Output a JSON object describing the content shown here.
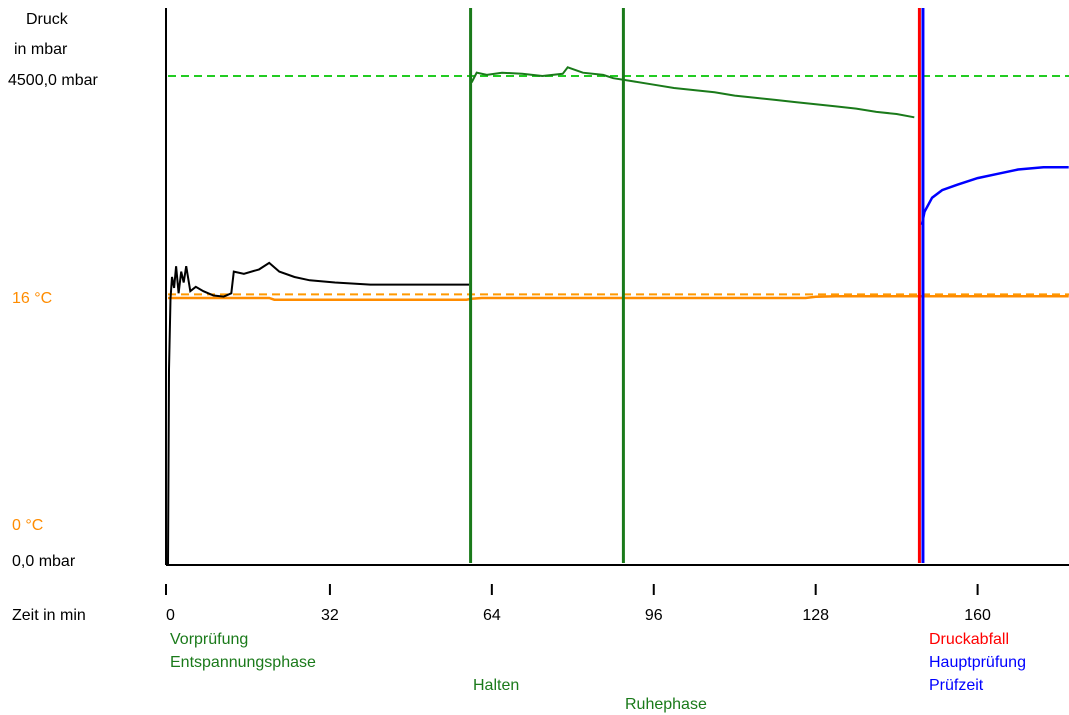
{
  "chart_data": {
    "type": "line",
    "y_axis_labels": {
      "title_line1": "Druck",
      "title_line2": "in mbar",
      "pressure_top": "4500,0 mbar",
      "pressure_bottom": "0,0 mbar",
      "temp_top": "16 °C",
      "temp_bottom": "0 °C"
    },
    "xlabel": "Zeit in min",
    "x_ticks": [
      0,
      32,
      64,
      96,
      128,
      160
    ],
    "xlim": [
      0,
      178
    ],
    "pressure_range_mbar": [
      0,
      4500
    ],
    "temperature_range_c": [
      0,
      16
    ],
    "reference_lines": {
      "pressure_setpoint_mbar": 4500,
      "temperature_setpoint_c": 16.1
    },
    "series": [
      {
        "color": "#000000",
        "unit": "mbar",
        "points": [
          [
            0,
            0
          ],
          [
            0.2,
            1800
          ],
          [
            0.5,
            2450
          ],
          [
            0.8,
            2650
          ],
          [
            1.2,
            2550
          ],
          [
            1.6,
            2750
          ],
          [
            2.1,
            2500
          ],
          [
            2.6,
            2700
          ],
          [
            3.1,
            2600
          ],
          [
            3.6,
            2750
          ],
          [
            4.4,
            2520
          ],
          [
            5.5,
            2560
          ],
          [
            7,
            2520
          ],
          [
            9,
            2480
          ],
          [
            11,
            2470
          ],
          [
            12.5,
            2500
          ],
          [
            13,
            2700
          ],
          [
            15,
            2680
          ],
          [
            18,
            2720
          ],
          [
            20,
            2780
          ],
          [
            22,
            2700
          ],
          [
            25,
            2650
          ],
          [
            28,
            2620
          ],
          [
            33,
            2600
          ],
          [
            40,
            2580
          ],
          [
            50,
            2580
          ],
          [
            59.5,
            2580
          ]
        ]
      },
      {
        "color": "#1a7a1a",
        "unit": "mbar",
        "points": [
          [
            60,
            4440
          ],
          [
            61,
            4530
          ],
          [
            63,
            4510
          ],
          [
            66,
            4530
          ],
          [
            70,
            4520
          ],
          [
            74,
            4500
          ],
          [
            78,
            4520
          ],
          [
            79,
            4580
          ],
          [
            82,
            4530
          ],
          [
            86,
            4510
          ],
          [
            88,
            4480
          ],
          [
            92,
            4450
          ],
          [
            96,
            4420
          ],
          [
            100,
            4390
          ],
          [
            104,
            4370
          ],
          [
            108,
            4350
          ],
          [
            112,
            4320
          ],
          [
            116,
            4300
          ],
          [
            120,
            4280
          ],
          [
            124,
            4260
          ],
          [
            128,
            4240
          ],
          [
            132,
            4220
          ],
          [
            136,
            4200
          ],
          [
            140,
            4170
          ],
          [
            144,
            4150
          ],
          [
            147.5,
            4120
          ]
        ]
      },
      {
        "color": "#0000ff",
        "unit": "mbar",
        "points": [
          [
            149,
            3130
          ],
          [
            149.5,
            3250
          ],
          [
            151,
            3380
          ],
          [
            153,
            3450
          ],
          [
            156,
            3500
          ],
          [
            160,
            3560
          ],
          [
            164,
            3600
          ],
          [
            168,
            3640
          ],
          [
            173,
            3660
          ],
          [
            178,
            3660
          ]
        ]
      },
      {
        "color": "#ff8c00",
        "unit": "°C",
        "points": [
          [
            0,
            16.0
          ],
          [
            20,
            16.0
          ],
          [
            21,
            15.9
          ],
          [
            40,
            15.9
          ],
          [
            59,
            15.9
          ],
          [
            60,
            15.95
          ],
          [
            62,
            16.0
          ],
          [
            100,
            16.0
          ],
          [
            126,
            16.0
          ],
          [
            128,
            16.07
          ],
          [
            132,
            16.1
          ],
          [
            140,
            16.1
          ],
          [
            150,
            16.1
          ],
          [
            178,
            16.1
          ]
        ]
      }
    ],
    "phase_markers": [
      {
        "x": 59.8,
        "color": "#1a7a1a"
      },
      {
        "x": 90,
        "color": "#1a7a1a"
      },
      {
        "x": 148.5,
        "color": "#ff0000"
      },
      {
        "x": 149.2,
        "color": "#0000ff"
      }
    ],
    "phase_labels": [
      {
        "text": "Vorprüfung",
        "color": "#1a7a1a"
      },
      {
        "text": "Entspannungsphase",
        "color": "#1a7a1a"
      },
      {
        "text": "Halten",
        "color": "#1a7a1a"
      },
      {
        "text": "Ruhephase",
        "color": "#1a7a1a"
      },
      {
        "text": "Druckabfall",
        "color": "#ff0000"
      },
      {
        "text": "Hauptprüfung",
        "color": "#0000ff"
      },
      {
        "text": "Prüfzeit",
        "color": "#0000ff"
      }
    ],
    "colors": {
      "pressure_ref": "#22cc22",
      "temp_ref": "#ff9900",
      "axis": "#000000",
      "temp_label": "#ff8c00"
    }
  }
}
